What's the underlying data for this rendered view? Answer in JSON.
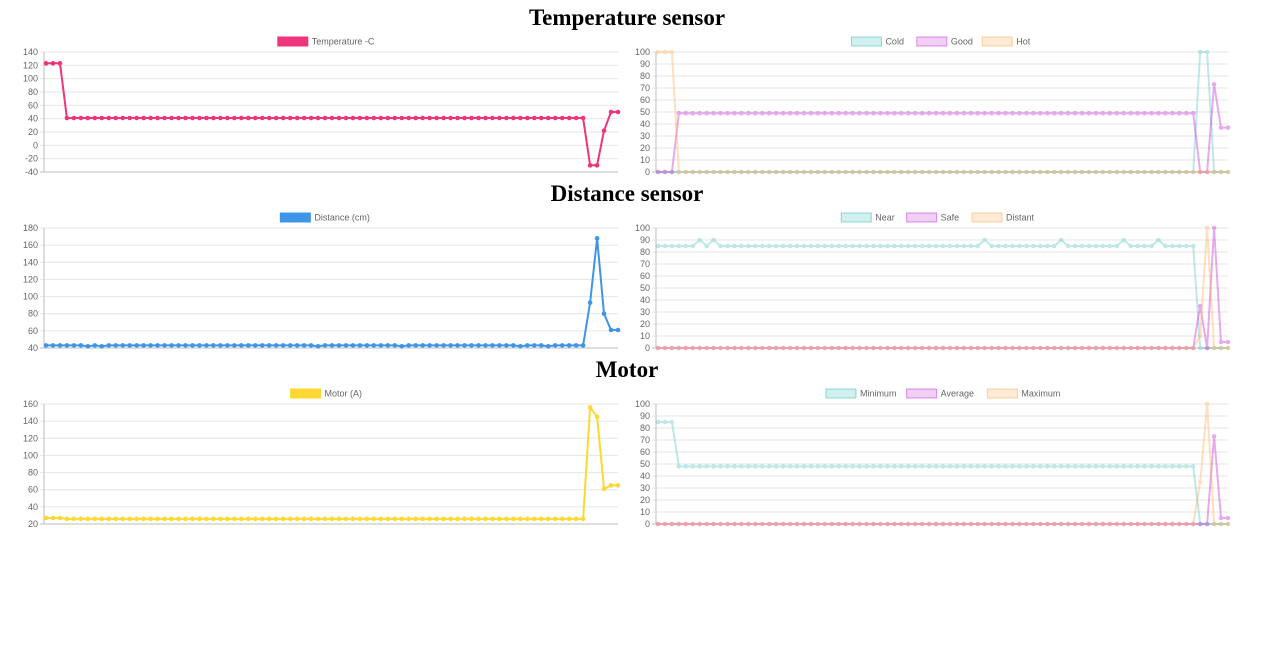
{
  "sections": [
    {
      "title": "Temperature sensor"
    },
    {
      "title": "Distance sensor"
    },
    {
      "title": "Motor"
    }
  ],
  "chart_data": [
    {
      "id": "temp-main",
      "type": "line",
      "legend": "top",
      "grid": true,
      "ylim": [
        -40,
        140
      ],
      "yticks": [
        140,
        120,
        100,
        80,
        60,
        40,
        20,
        0,
        -20,
        -40
      ],
      "series": [
        {
          "name": "Temperature -C",
          "color": "#f0347c",
          "opacity": 1,
          "values": [
            123,
            123,
            123,
            41,
            41,
            41,
            41,
            41,
            41,
            41,
            41,
            41,
            41,
            41,
            41,
            41,
            41,
            41,
            41,
            41,
            41,
            41,
            41,
            41,
            41,
            41,
            41,
            41,
            41,
            41,
            41,
            41,
            41,
            41,
            41,
            41,
            41,
            41,
            41,
            41,
            41,
            41,
            41,
            41,
            41,
            41,
            41,
            41,
            41,
            41,
            41,
            41,
            41,
            41,
            41,
            41,
            41,
            41,
            41,
            41,
            41,
            41,
            41,
            41,
            41,
            41,
            41,
            41,
            41,
            41,
            41,
            41,
            41,
            41,
            41,
            41,
            41,
            41,
            -30,
            -30,
            22,
            50,
            50
          ]
        }
      ]
    },
    {
      "id": "temp-fuzzy",
      "type": "line",
      "legend": "top",
      "grid": true,
      "ylim": [
        0,
        100
      ],
      "yticks": [
        100,
        90,
        80,
        70,
        60,
        50,
        40,
        30,
        20,
        10,
        0
      ],
      "series": [
        {
          "name": "Cold",
          "color": "#4bc0c0",
          "opacity": 0.35,
          "values": [
            0,
            0,
            0,
            0,
            0,
            0,
            0,
            0,
            0,
            0,
            0,
            0,
            0,
            0,
            0,
            0,
            0,
            0,
            0,
            0,
            0,
            0,
            0,
            0,
            0,
            0,
            0,
            0,
            0,
            0,
            0,
            0,
            0,
            0,
            0,
            0,
            0,
            0,
            0,
            0,
            0,
            0,
            0,
            0,
            0,
            0,
            0,
            0,
            0,
            0,
            0,
            0,
            0,
            0,
            0,
            0,
            0,
            0,
            0,
            0,
            0,
            0,
            0,
            0,
            0,
            0,
            0,
            0,
            0,
            0,
            0,
            0,
            0,
            0,
            0,
            0,
            0,
            0,
            100,
            100,
            0,
            0,
            0
          ]
        },
        {
          "name": "Good",
          "color": "#cc44dd",
          "opacity": 0.45,
          "values": [
            0,
            0,
            0,
            49,
            49,
            49,
            49,
            49,
            49,
            49,
            49,
            49,
            49,
            49,
            49,
            49,
            49,
            49,
            49,
            49,
            49,
            49,
            49,
            49,
            49,
            49,
            49,
            49,
            49,
            49,
            49,
            49,
            49,
            49,
            49,
            49,
            49,
            49,
            49,
            49,
            49,
            49,
            49,
            49,
            49,
            49,
            49,
            49,
            49,
            49,
            49,
            49,
            49,
            49,
            49,
            49,
            49,
            49,
            49,
            49,
            49,
            49,
            49,
            49,
            49,
            49,
            49,
            49,
            49,
            49,
            49,
            49,
            49,
            49,
            49,
            49,
            49,
            49,
            0,
            0,
            73,
            37,
            37
          ]
        },
        {
          "name": "Hot",
          "color": "#ffb060",
          "opacity": 0.4,
          "values": [
            100,
            100,
            100,
            0,
            0,
            0,
            0,
            0,
            0,
            0,
            0,
            0,
            0,
            0,
            0,
            0,
            0,
            0,
            0,
            0,
            0,
            0,
            0,
            0,
            0,
            0,
            0,
            0,
            0,
            0,
            0,
            0,
            0,
            0,
            0,
            0,
            0,
            0,
            0,
            0,
            0,
            0,
            0,
            0,
            0,
            0,
            0,
            0,
            0,
            0,
            0,
            0,
            0,
            0,
            0,
            0,
            0,
            0,
            0,
            0,
            0,
            0,
            0,
            0,
            0,
            0,
            0,
            0,
            0,
            0,
            0,
            0,
            0,
            0,
            0,
            0,
            0,
            0,
            0,
            0,
            0,
            0,
            0
          ]
        }
      ]
    },
    {
      "id": "dist-main",
      "type": "line",
      "legend": "top",
      "grid": true,
      "ylim": [
        40,
        180
      ],
      "yticks": [
        180,
        160,
        140,
        120,
        100,
        80,
        60,
        40
      ],
      "series": [
        {
          "name": "Distance (cm)",
          "color": "#3e95e8",
          "opacity": 1,
          "values": [
            43,
            43,
            43,
            43,
            43,
            43,
            42,
            43,
            42,
            43,
            43,
            43,
            43,
            43,
            43,
            43,
            43,
            43,
            43,
            43,
            43,
            43,
            43,
            43,
            43,
            43,
            43,
            43,
            43,
            43,
            43,
            43,
            43,
            43,
            43,
            43,
            43,
            43,
            43,
            42,
            43,
            43,
            43,
            43,
            43,
            43,
            43,
            43,
            43,
            43,
            43,
            42,
            43,
            43,
            43,
            43,
            43,
            43,
            43,
            43,
            43,
            43,
            43,
            43,
            43,
            43,
            43,
            43,
            42,
            43,
            43,
            43,
            42,
            43,
            43,
            43,
            43,
            43,
            93,
            168,
            80,
            61,
            61
          ]
        }
      ]
    },
    {
      "id": "dist-fuzzy",
      "type": "line",
      "legend": "top",
      "grid": true,
      "ylim": [
        0,
        100
      ],
      "yticks": [
        100,
        90,
        80,
        70,
        60,
        50,
        40,
        30,
        20,
        10,
        0
      ],
      "series": [
        {
          "name": "Near",
          "color": "#4bc0c0",
          "opacity": 0.35,
          "values": [
            85,
            85,
            85,
            85,
            85,
            85,
            90,
            85,
            90,
            85,
            85,
            85,
            85,
            85,
            85,
            85,
            85,
            85,
            85,
            85,
            85,
            85,
            85,
            85,
            85,
            85,
            85,
            85,
            85,
            85,
            85,
            85,
            85,
            85,
            85,
            85,
            85,
            85,
            85,
            85,
            85,
            85,
            85,
            85,
            85,
            85,
            85,
            90,
            85,
            85,
            85,
            85,
            85,
            85,
            85,
            85,
            85,
            85,
            90,
            85,
            85,
            85,
            85,
            85,
            85,
            85,
            85,
            90,
            85,
            85,
            85,
            85,
            90,
            85,
            85,
            85,
            85,
            85,
            0,
            0,
            0,
            0,
            0
          ]
        },
        {
          "name": "Safe",
          "color": "#cc44dd",
          "opacity": 0.45,
          "values": [
            0,
            0,
            0,
            0,
            0,
            0,
            0,
            0,
            0,
            0,
            0,
            0,
            0,
            0,
            0,
            0,
            0,
            0,
            0,
            0,
            0,
            0,
            0,
            0,
            0,
            0,
            0,
            0,
            0,
            0,
            0,
            0,
            0,
            0,
            0,
            0,
            0,
            0,
            0,
            0,
            0,
            0,
            0,
            0,
            0,
            0,
            0,
            0,
            0,
            0,
            0,
            0,
            0,
            0,
            0,
            0,
            0,
            0,
            0,
            0,
            0,
            0,
            0,
            0,
            0,
            0,
            0,
            0,
            0,
            0,
            0,
            0,
            0,
            0,
            0,
            0,
            0,
            0,
            35,
            0,
            100,
            5,
            5
          ]
        },
        {
          "name": "Distant",
          "color": "#ffb060",
          "opacity": 0.4,
          "values": [
            0,
            0,
            0,
            0,
            0,
            0,
            0,
            0,
            0,
            0,
            0,
            0,
            0,
            0,
            0,
            0,
            0,
            0,
            0,
            0,
            0,
            0,
            0,
            0,
            0,
            0,
            0,
            0,
            0,
            0,
            0,
            0,
            0,
            0,
            0,
            0,
            0,
            0,
            0,
            0,
            0,
            0,
            0,
            0,
            0,
            0,
            0,
            0,
            0,
            0,
            0,
            0,
            0,
            0,
            0,
            0,
            0,
            0,
            0,
            0,
            0,
            0,
            0,
            0,
            0,
            0,
            0,
            0,
            0,
            0,
            0,
            0,
            0,
            0,
            0,
            0,
            0,
            0,
            10,
            100,
            0,
            0,
            0
          ]
        }
      ]
    },
    {
      "id": "motor-main",
      "type": "line",
      "legend": "top",
      "grid": true,
      "ylim": [
        20,
        160
      ],
      "yticks": [
        160,
        140,
        120,
        100,
        80,
        60,
        40,
        20
      ],
      "series": [
        {
          "name": "Motor (A)",
          "color": "#fdd835",
          "opacity": 1,
          "values": [
            27,
            27,
            27,
            26,
            26,
            26,
            26,
            26,
            26,
            26,
            26,
            26,
            26,
            26,
            26,
            26,
            26,
            26,
            26,
            26,
            26,
            26,
            26,
            26,
            26,
            26,
            26,
            26,
            26,
            26,
            26,
            26,
            26,
            26,
            26,
            26,
            26,
            26,
            26,
            26,
            26,
            26,
            26,
            26,
            26,
            26,
            26,
            26,
            26,
            26,
            26,
            26,
            26,
            26,
            26,
            26,
            26,
            26,
            26,
            26,
            26,
            26,
            26,
            26,
            26,
            26,
            26,
            26,
            26,
            26,
            26,
            26,
            26,
            26,
            26,
            26,
            26,
            26,
            156,
            145,
            61,
            65,
            65
          ]
        }
      ]
    },
    {
      "id": "motor-fuzzy",
      "type": "line",
      "legend": "top",
      "grid": true,
      "ylim": [
        0,
        100
      ],
      "yticks": [
        100,
        90,
        80,
        70,
        60,
        50,
        40,
        30,
        20,
        10,
        0
      ],
      "series": [
        {
          "name": "Minimum",
          "color": "#4bc0c0",
          "opacity": 0.35,
          "values": [
            85,
            85,
            85,
            48,
            48,
            48,
            48,
            48,
            48,
            48,
            48,
            48,
            48,
            48,
            48,
            48,
            48,
            48,
            48,
            48,
            48,
            48,
            48,
            48,
            48,
            48,
            48,
            48,
            48,
            48,
            48,
            48,
            48,
            48,
            48,
            48,
            48,
            48,
            48,
            48,
            48,
            48,
            48,
            48,
            48,
            48,
            48,
            48,
            48,
            48,
            48,
            48,
            48,
            48,
            48,
            48,
            48,
            48,
            48,
            48,
            48,
            48,
            48,
            48,
            48,
            48,
            48,
            48,
            48,
            48,
            48,
            48,
            48,
            48,
            48,
            48,
            48,
            48,
            0,
            0,
            0,
            0,
            0
          ]
        },
        {
          "name": "Average",
          "color": "#cc44dd",
          "opacity": 0.45,
          "values": [
            0,
            0,
            0,
            0,
            0,
            0,
            0,
            0,
            0,
            0,
            0,
            0,
            0,
            0,
            0,
            0,
            0,
            0,
            0,
            0,
            0,
            0,
            0,
            0,
            0,
            0,
            0,
            0,
            0,
            0,
            0,
            0,
            0,
            0,
            0,
            0,
            0,
            0,
            0,
            0,
            0,
            0,
            0,
            0,
            0,
            0,
            0,
            0,
            0,
            0,
            0,
            0,
            0,
            0,
            0,
            0,
            0,
            0,
            0,
            0,
            0,
            0,
            0,
            0,
            0,
            0,
            0,
            0,
            0,
            0,
            0,
            0,
            0,
            0,
            0,
            0,
            0,
            0,
            0,
            0,
            73,
            5,
            5
          ]
        },
        {
          "name": "Maximum",
          "color": "#ffb060",
          "opacity": 0.4,
          "values": [
            0,
            0,
            0,
            0,
            0,
            0,
            0,
            0,
            0,
            0,
            0,
            0,
            0,
            0,
            0,
            0,
            0,
            0,
            0,
            0,
            0,
            0,
            0,
            0,
            0,
            0,
            0,
            0,
            0,
            0,
            0,
            0,
            0,
            0,
            0,
            0,
            0,
            0,
            0,
            0,
            0,
            0,
            0,
            0,
            0,
            0,
            0,
            0,
            0,
            0,
            0,
            0,
            0,
            0,
            0,
            0,
            0,
            0,
            0,
            0,
            0,
            0,
            0,
            0,
            0,
            0,
            0,
            0,
            0,
            0,
            0,
            0,
            0,
            0,
            0,
            0,
            0,
            0,
            35,
            100,
            0,
            0,
            0
          ]
        }
      ]
    }
  ]
}
